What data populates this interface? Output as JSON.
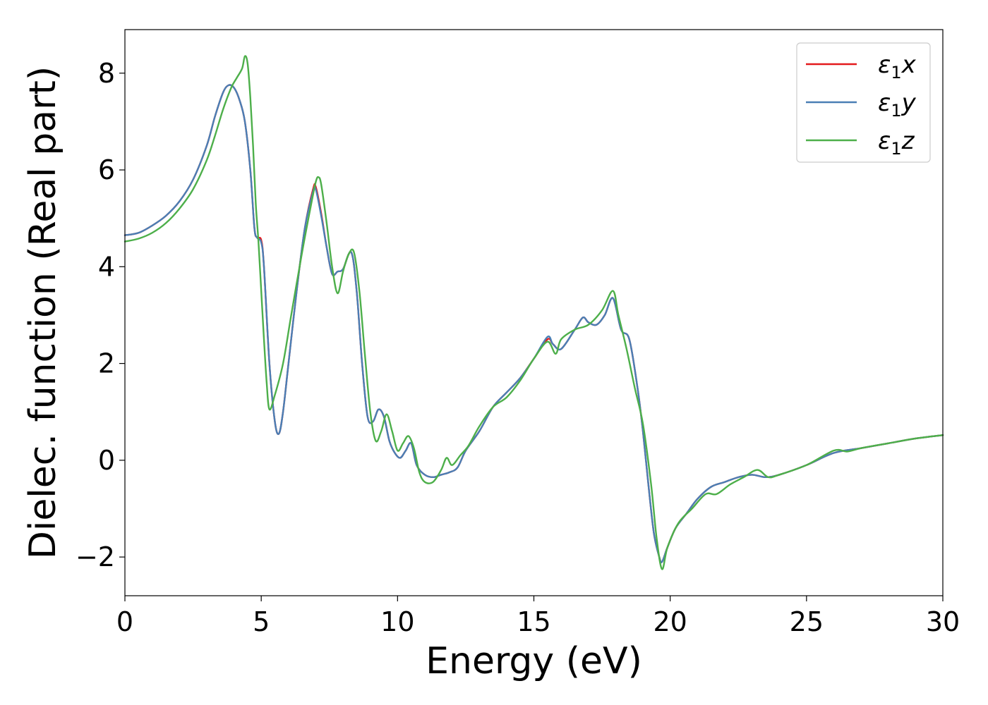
{
  "chart_data": {
    "type": "line",
    "title": "",
    "xlabel": "Energy (eV)",
    "ylabel": "Dielec. function (Real part)",
    "xlim": [
      0,
      30
    ],
    "ylim": [
      -2.8,
      8.9
    ],
    "xticks": [
      0,
      5,
      10,
      15,
      20,
      25,
      30
    ],
    "xtick_labels": [
      "0",
      "5",
      "10",
      "15",
      "20",
      "25",
      "30"
    ],
    "yticks": [
      -2,
      0,
      2,
      4,
      6,
      8
    ],
    "ytick_labels": [
      "−2",
      "0",
      "2",
      "4",
      "6",
      "8"
    ],
    "grid": false,
    "legend_position": "top-right",
    "series": [
      {
        "name": "ε1x",
        "legend_main": "ε",
        "legend_sub": "1",
        "legend_var": "x",
        "color": "#e41a1c",
        "x": [
          0,
          0.5,
          1,
          1.5,
          2,
          2.5,
          3,
          3.3,
          3.6,
          3.8,
          4.0,
          4.2,
          4.4,
          4.6,
          4.75,
          4.85,
          5.0,
          5.1,
          5.3,
          5.5,
          5.65,
          5.8,
          6.0,
          6.3,
          6.6,
          6.9,
          7.0,
          7.2,
          7.4,
          7.6,
          7.8,
          8.0,
          8.3,
          8.5,
          8.7,
          8.9,
          9.1,
          9.3,
          9.5,
          9.7,
          9.9,
          10.1,
          10.3,
          10.5,
          10.7,
          11.0,
          11.3,
          11.6,
          11.9,
          12.2,
          12.5,
          13.0,
          13.5,
          14.0,
          14.5,
          15.0,
          15.5,
          15.7,
          16.0,
          16.5,
          16.8,
          17.0,
          17.3,
          17.6,
          17.9,
          18.2,
          18.5,
          18.8,
          19.0,
          19.2,
          19.4,
          19.6,
          19.7,
          19.9,
          20.2,
          20.6,
          21.0,
          21.5,
          22.0,
          22.5,
          23.0,
          23.5,
          24.0,
          25.0,
          26.0,
          27.0,
          28.0,
          29.0,
          30.0
        ],
        "y": [
          4.65,
          4.7,
          4.85,
          5.05,
          5.35,
          5.8,
          6.5,
          7.1,
          7.6,
          7.75,
          7.7,
          7.45,
          7.0,
          6.0,
          4.8,
          4.6,
          4.55,
          4.0,
          2.0,
          0.8,
          0.55,
          1.0,
          2.0,
          3.5,
          4.8,
          5.6,
          5.65,
          5.1,
          4.4,
          3.85,
          3.9,
          3.95,
          4.3,
          3.5,
          2.0,
          0.9,
          0.8,
          1.05,
          0.9,
          0.4,
          0.15,
          0.05,
          0.2,
          0.35,
          -0.1,
          -0.3,
          -0.35,
          -0.3,
          -0.25,
          -0.15,
          0.2,
          0.6,
          1.1,
          1.4,
          1.7,
          2.1,
          2.5,
          2.4,
          2.3,
          2.7,
          2.95,
          2.85,
          2.8,
          3.0,
          3.35,
          2.7,
          2.5,
          1.5,
          0.6,
          -0.5,
          -1.5,
          -2.0,
          -2.1,
          -1.8,
          -1.4,
          -1.1,
          -0.8,
          -0.55,
          -0.45,
          -0.35,
          -0.3,
          -0.35,
          -0.3,
          -0.1,
          0.15,
          0.25,
          0.35,
          0.45,
          0.52
        ]
      },
      {
        "name": "ε1y",
        "legend_main": "ε",
        "legend_sub": "1",
        "legend_var": "y",
        "color": "#4a7fb5",
        "x": [
          0,
          0.5,
          1,
          1.5,
          2,
          2.5,
          3,
          3.3,
          3.6,
          3.8,
          4.0,
          4.2,
          4.4,
          4.6,
          4.75,
          4.85,
          5.0,
          5.1,
          5.3,
          5.5,
          5.65,
          5.8,
          6.0,
          6.3,
          6.6,
          6.9,
          7.0,
          7.2,
          7.4,
          7.6,
          7.8,
          8.0,
          8.3,
          8.5,
          8.7,
          8.9,
          9.1,
          9.3,
          9.5,
          9.7,
          9.9,
          10.1,
          10.3,
          10.5,
          10.7,
          11.0,
          11.3,
          11.6,
          11.9,
          12.2,
          12.5,
          13.0,
          13.5,
          14.0,
          14.5,
          15.0,
          15.5,
          15.7,
          16.0,
          16.5,
          16.8,
          17.0,
          17.3,
          17.6,
          17.9,
          18.2,
          18.5,
          18.8,
          19.0,
          19.2,
          19.4,
          19.6,
          19.7,
          19.9,
          20.2,
          20.6,
          21.0,
          21.5,
          22.0,
          22.5,
          23.0,
          23.5,
          24.0,
          25.0,
          26.0,
          27.0,
          28.0,
          29.0,
          30.0
        ],
        "y": [
          4.65,
          4.7,
          4.85,
          5.05,
          5.35,
          5.8,
          6.5,
          7.1,
          7.6,
          7.75,
          7.7,
          7.45,
          7.0,
          6.0,
          4.8,
          4.6,
          4.5,
          4.0,
          2.0,
          0.8,
          0.55,
          1.0,
          2.0,
          3.5,
          4.8,
          5.55,
          5.6,
          5.05,
          4.4,
          3.85,
          3.9,
          3.95,
          4.3,
          3.5,
          2.0,
          0.9,
          0.8,
          1.05,
          0.9,
          0.4,
          0.15,
          0.05,
          0.2,
          0.35,
          -0.1,
          -0.3,
          -0.35,
          -0.3,
          -0.25,
          -0.15,
          0.2,
          0.6,
          1.1,
          1.4,
          1.7,
          2.1,
          2.55,
          2.4,
          2.3,
          2.7,
          2.95,
          2.85,
          2.8,
          3.0,
          3.35,
          2.7,
          2.5,
          1.5,
          0.6,
          -0.5,
          -1.5,
          -2.0,
          -2.1,
          -1.8,
          -1.4,
          -1.1,
          -0.8,
          -0.55,
          -0.45,
          -0.35,
          -0.3,
          -0.35,
          -0.3,
          -0.1,
          0.15,
          0.25,
          0.35,
          0.45,
          0.52
        ]
      },
      {
        "name": "ε1z",
        "legend_main": "ε",
        "legend_sub": "1",
        "legend_var": "z",
        "color": "#4daf4a",
        "x": [
          0,
          0.5,
          1,
          1.5,
          2,
          2.5,
          3,
          3.3,
          3.6,
          3.9,
          4.1,
          4.3,
          4.4,
          4.5,
          4.6,
          4.7,
          4.8,
          4.9,
          5.0,
          5.1,
          5.2,
          5.3,
          5.5,
          5.8,
          6.1,
          6.5,
          6.8,
          7.0,
          7.1,
          7.2,
          7.4,
          7.6,
          7.8,
          8.0,
          8.2,
          8.4,
          8.6,
          8.8,
          9.0,
          9.2,
          9.4,
          9.6,
          9.8,
          10.0,
          10.2,
          10.4,
          10.6,
          10.8,
          11.0,
          11.3,
          11.6,
          11.8,
          12.0,
          12.3,
          12.6,
          13.0,
          13.5,
          14.0,
          14.5,
          15.0,
          15.5,
          15.8,
          16.0,
          16.5,
          17.0,
          17.5,
          17.9,
          18.1,
          18.4,
          18.7,
          19.0,
          19.3,
          19.5,
          19.7,
          19.9,
          20.3,
          20.8,
          21.3,
          21.7,
          22.2,
          22.7,
          23.2,
          23.6,
          24.0,
          25.0,
          26.0,
          26.5,
          27.0,
          28.0,
          29.0,
          30.0
        ],
        "y": [
          4.52,
          4.58,
          4.7,
          4.9,
          5.2,
          5.6,
          6.2,
          6.7,
          7.25,
          7.7,
          7.9,
          8.1,
          8.35,
          8.2,
          7.5,
          6.5,
          5.3,
          4.5,
          3.5,
          2.5,
          1.6,
          1.05,
          1.35,
          2.0,
          3.0,
          4.3,
          5.2,
          5.75,
          5.85,
          5.7,
          4.9,
          4.0,
          3.45,
          3.9,
          4.25,
          4.3,
          3.5,
          2.2,
          1.0,
          0.4,
          0.6,
          0.95,
          0.6,
          0.2,
          0.35,
          0.5,
          0.25,
          -0.25,
          -0.45,
          -0.45,
          -0.2,
          0.05,
          -0.1,
          0.1,
          0.3,
          0.7,
          1.1,
          1.3,
          1.65,
          2.1,
          2.45,
          2.2,
          2.5,
          2.7,
          2.8,
          3.1,
          3.5,
          3.0,
          2.3,
          1.5,
          0.75,
          -0.5,
          -1.6,
          -2.25,
          -1.8,
          -1.3,
          -1.0,
          -0.7,
          -0.7,
          -0.5,
          -0.35,
          -0.2,
          -0.35,
          -0.3,
          -0.1,
          0.2,
          0.18,
          0.25,
          0.35,
          0.45,
          0.52
        ]
      }
    ]
  }
}
